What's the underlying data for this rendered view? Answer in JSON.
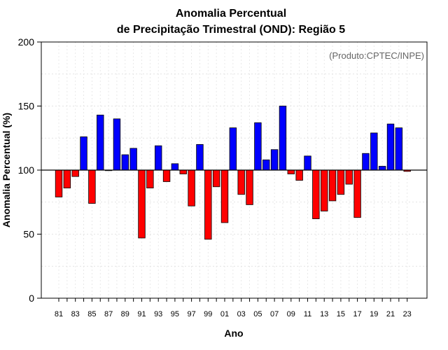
{
  "chart_data": {
    "type": "bar",
    "title_line1": "Anomalia Percentual",
    "title_line2": "de Precipitação Trimestral (OND): Região 5",
    "credit": "(Produto:CPTEC/INPE)",
    "xlabel": "Ano",
    "ylabel": "Anomalia Percentual (%)",
    "ylim": [
      0,
      200
    ],
    "yticks": [
      "0",
      "50",
      "100",
      "150",
      "200"
    ],
    "baseline": 100,
    "grid": true,
    "above_color": "#0000ff",
    "below_color": "#ff0000",
    "categories": [
      "81",
      "82",
      "83",
      "84",
      "85",
      "86",
      "87",
      "88",
      "89",
      "90",
      "91",
      "92",
      "93",
      "94",
      "95",
      "96",
      "97",
      "98",
      "99",
      "00",
      "01",
      "02",
      "03",
      "04",
      "05",
      "06",
      "07",
      "08",
      "09",
      "10",
      "11",
      "12",
      "13",
      "14",
      "15",
      "16",
      "17",
      "18",
      "19",
      "20",
      "21",
      "22",
      "23"
    ],
    "xtick_labels": [
      "81",
      "83",
      "85",
      "87",
      "89",
      "91",
      "93",
      "95",
      "97",
      "99",
      "01",
      "03",
      "05",
      "07",
      "09",
      "11",
      "13",
      "15",
      "17",
      "19",
      "21",
      "23"
    ],
    "values": [
      79,
      86,
      95,
      126,
      74,
      143,
      100,
      140,
      112,
      117,
      47,
      86,
      119,
      91,
      105,
      97,
      72,
      120,
      46,
      87,
      59,
      133,
      81,
      73,
      137,
      108,
      116,
      150,
      97,
      92,
      111,
      62,
      68,
      76,
      81,
      89,
      63,
      113,
      129,
      103,
      136,
      133,
      99
    ]
  }
}
